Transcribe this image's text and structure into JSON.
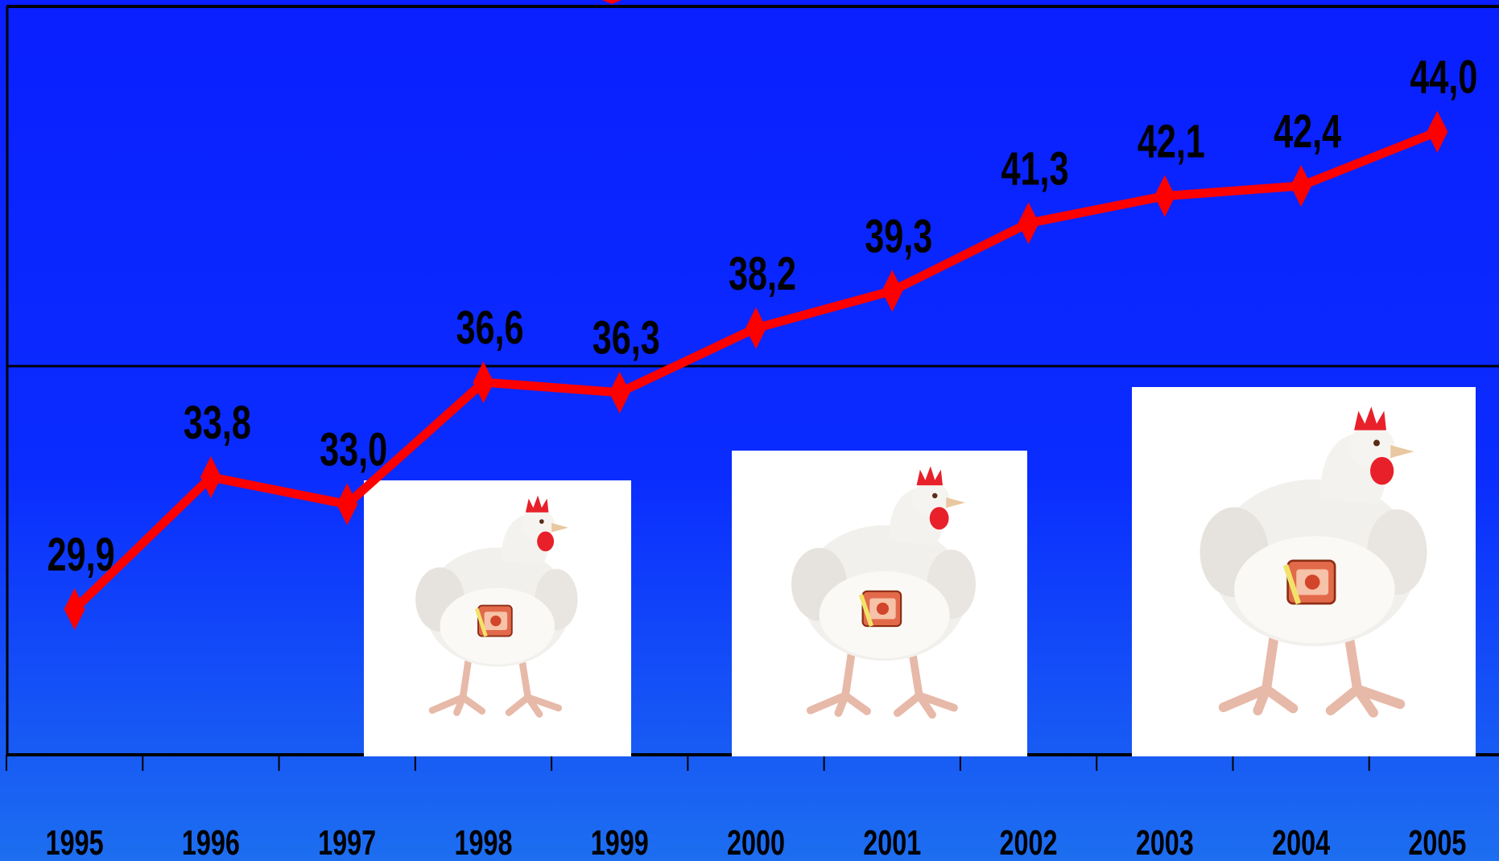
{
  "chart_data": {
    "type": "line",
    "title": "",
    "xlabel": "",
    "ylabel": "",
    "categories": [
      "1995",
      "1996",
      "1997",
      "1998",
      "1999",
      "2000",
      "2001",
      "2002",
      "2003",
      "2004",
      "2005"
    ],
    "series": [
      {
        "values": [
          29.9,
          33.8,
          33.0,
          36.6,
          36.3,
          38.2,
          39.3,
          41.3,
          42.1,
          42.4,
          44.0
        ],
        "value_labels": [
          "29,9",
          "33,8",
          "33,0",
          "36,6",
          "36,3",
          "38,2",
          "39,3",
          "41,3",
          "42,1",
          "42,4",
          "44,0"
        ],
        "color": "#ff0000",
        "marker": "diamond"
      }
    ],
    "ylim": [
      25.6,
      47.7
    ],
    "grid": true,
    "legend": "none"
  },
  "colors": {
    "background": "#0a28ff",
    "line": "#ff0000",
    "axis": "#000000"
  },
  "images": [
    {
      "name": "chicken-image-small",
      "depicts": "white broiler chicken"
    },
    {
      "name": "chicken-image-medium",
      "depicts": "white broiler chicken"
    },
    {
      "name": "chicken-image-large",
      "depicts": "white broiler chicken"
    }
  ]
}
